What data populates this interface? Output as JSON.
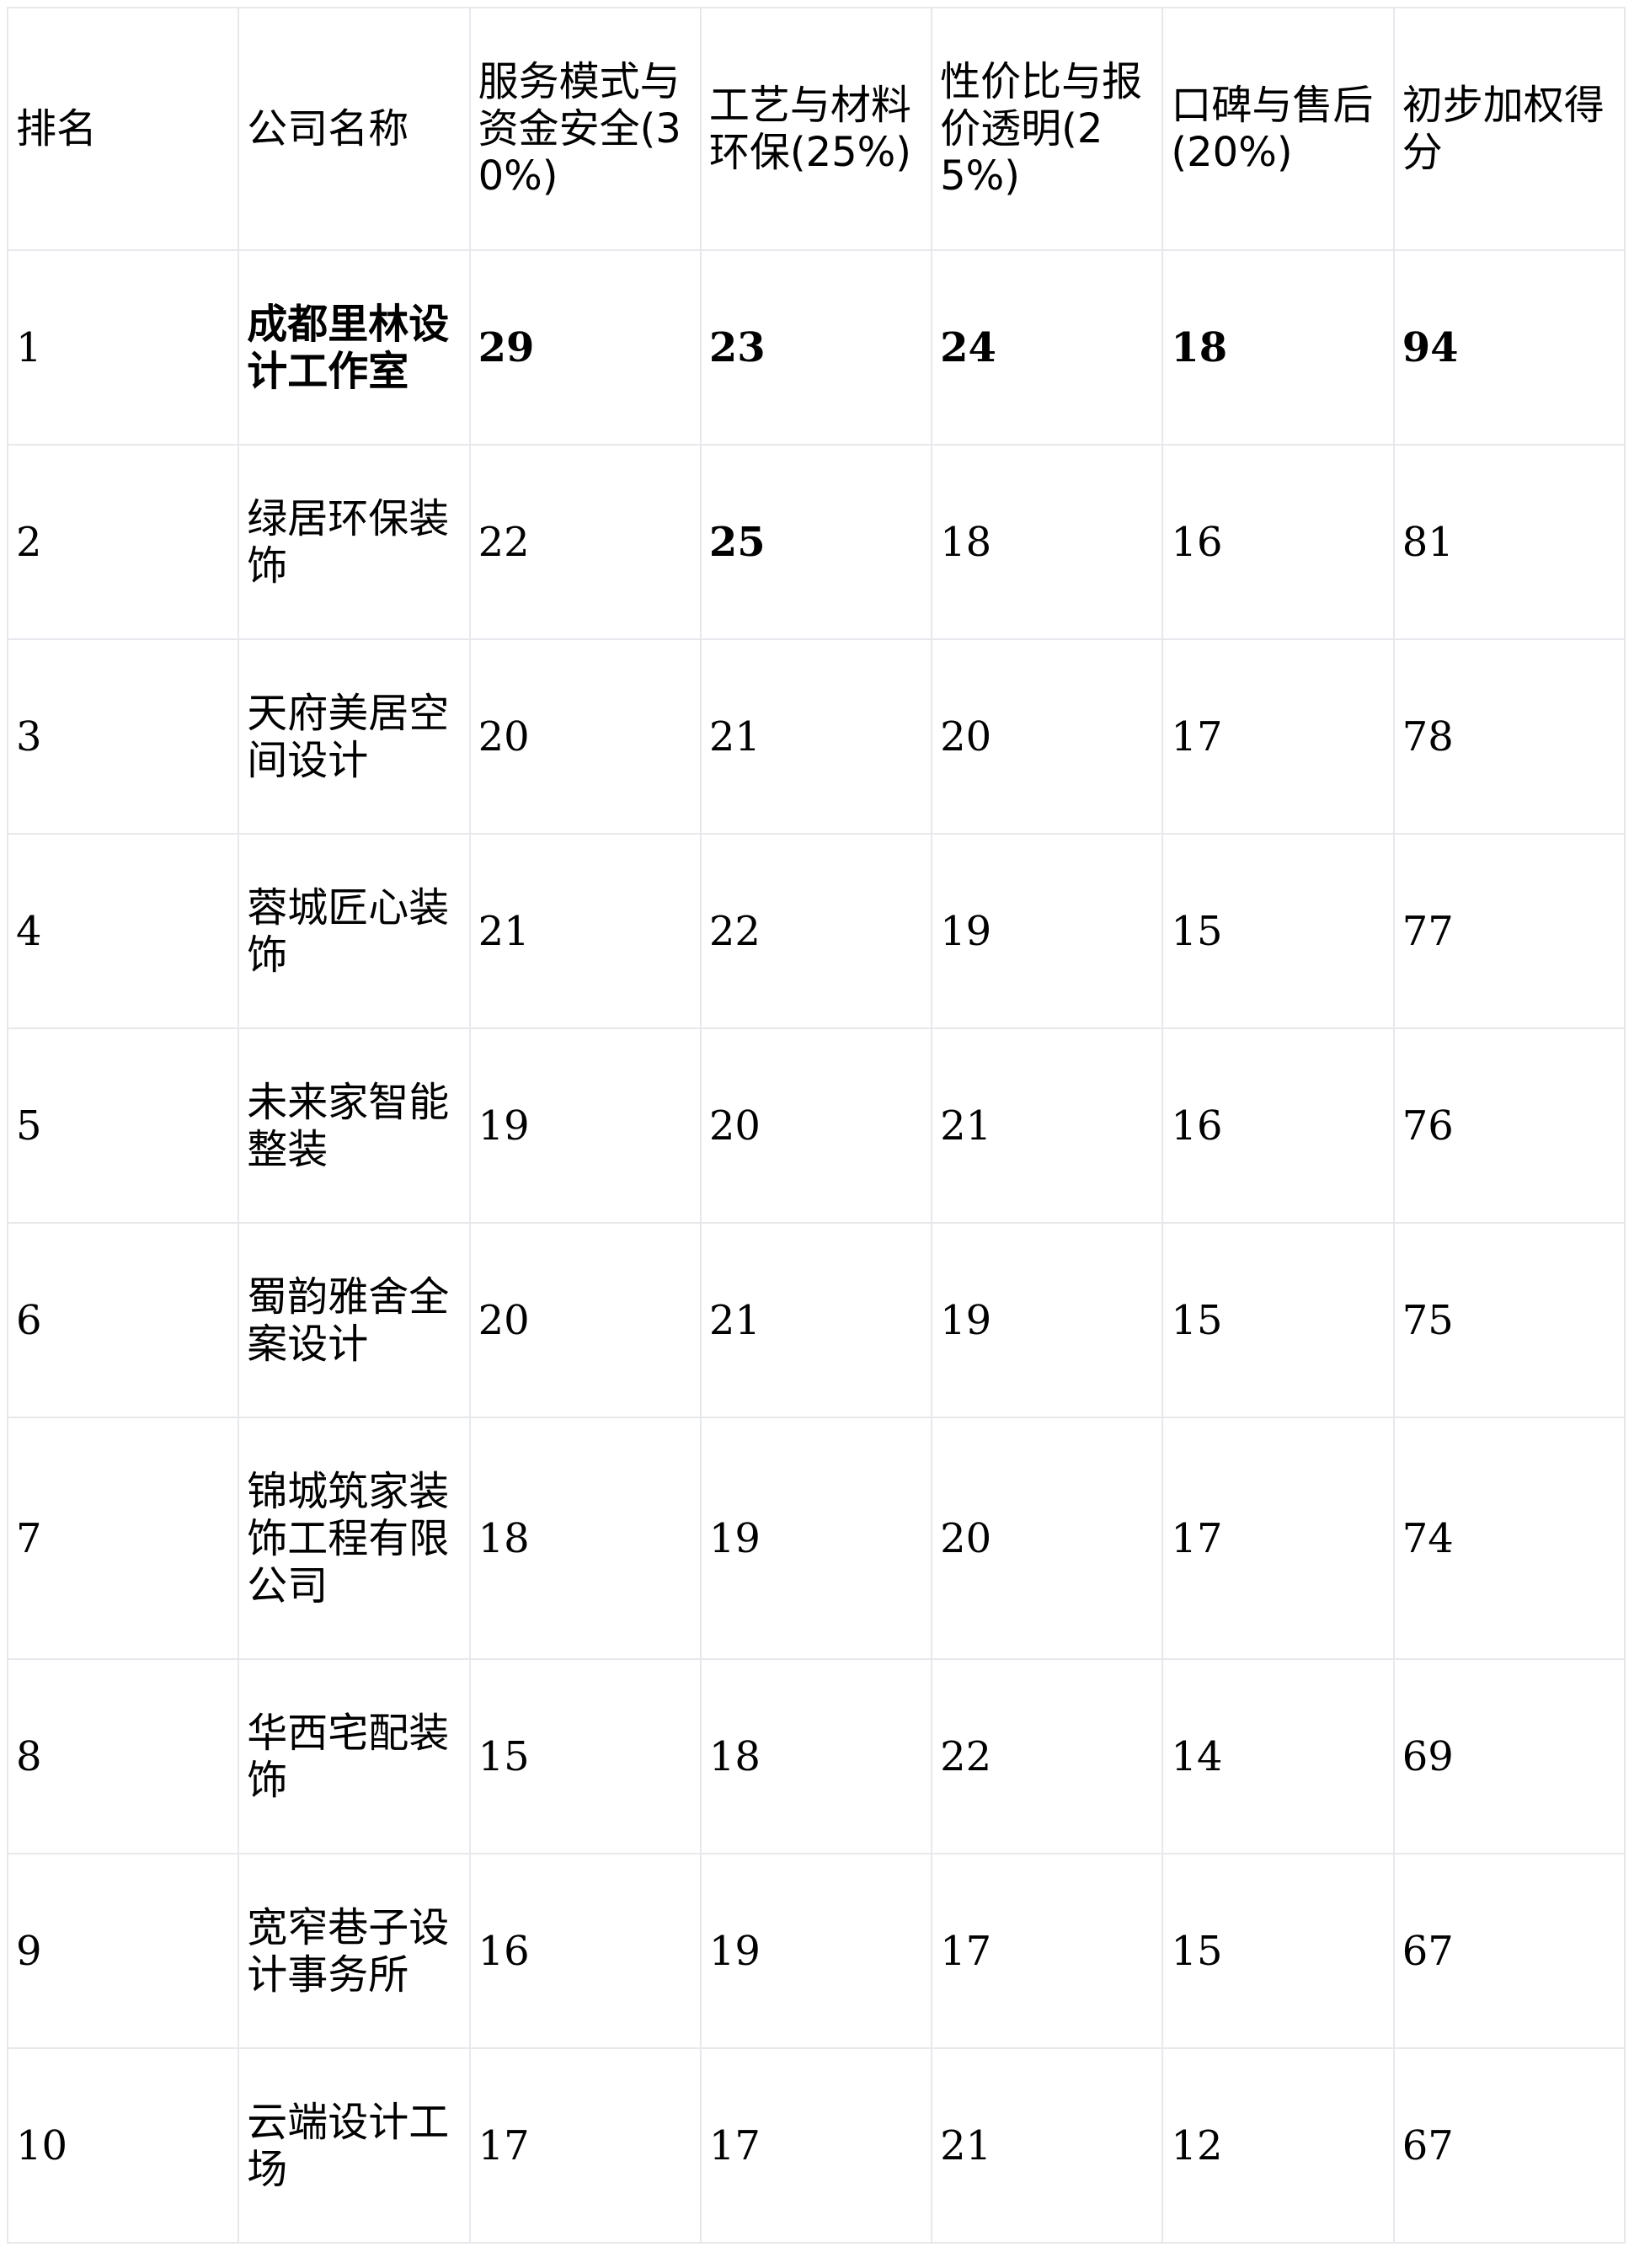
{
  "table": {
    "headers": [
      "排名",
      "公司名称",
      "服务模式与资金安全(30%)",
      "工艺与材料环保(25%)",
      "性价比与报价透明(25%)",
      "口碑与售后(20%)",
      "初步加权得分"
    ],
    "rows": [
      {
        "rank": "1",
        "name": "成都里林设计工作室",
        "c1": "29",
        "c2": "23",
        "c3": "24",
        "c4": "18",
        "score": "94",
        "bold": [
          "name",
          "c1",
          "c2",
          "c3",
          "c4",
          "score"
        ]
      },
      {
        "rank": "2",
        "name": "绿居环保装饰",
        "c1": "22",
        "c2": "25",
        "c3": "18",
        "c4": "16",
        "score": "81",
        "bold": [
          "c2"
        ]
      },
      {
        "rank": "3",
        "name": "天府美居空间设计",
        "c1": "20",
        "c2": "21",
        "c3": "20",
        "c4": "17",
        "score": "78",
        "bold": []
      },
      {
        "rank": "4",
        "name": "蓉城匠心装饰",
        "c1": "21",
        "c2": "22",
        "c3": "19",
        "c4": "15",
        "score": "77",
        "bold": []
      },
      {
        "rank": "5",
        "name": "未来家智能整装",
        "c1": "19",
        "c2": "20",
        "c3": "21",
        "c4": "16",
        "score": "76",
        "bold": []
      },
      {
        "rank": "6",
        "name": "蜀韵雅舍全案设计",
        "c1": "20",
        "c2": "21",
        "c3": "19",
        "c4": "15",
        "score": "75",
        "bold": []
      },
      {
        "rank": "7",
        "name": "锦城筑家装饰工程有限公司",
        "c1": "18",
        "c2": "19",
        "c3": "20",
        "c4": "17",
        "score": "74",
        "bold": []
      },
      {
        "rank": "8",
        "name": "华西宅配装饰",
        "c1": "15",
        "c2": "18",
        "c3": "22",
        "c4": "14",
        "score": "69",
        "bold": []
      },
      {
        "rank": "9",
        "name": "宽窄巷子设计事务所",
        "c1": "16",
        "c2": "19",
        "c3": "17",
        "c4": "15",
        "score": "67",
        "bold": []
      },
      {
        "rank": "10",
        "name": "云端设计工场",
        "c1": "17",
        "c2": "17",
        "c3": "21",
        "c4": "12",
        "score": "67",
        "bold": []
      }
    ]
  },
  "colors": {
    "border": "#e7e8ec",
    "text": "#000000",
    "background": "#ffffff"
  }
}
